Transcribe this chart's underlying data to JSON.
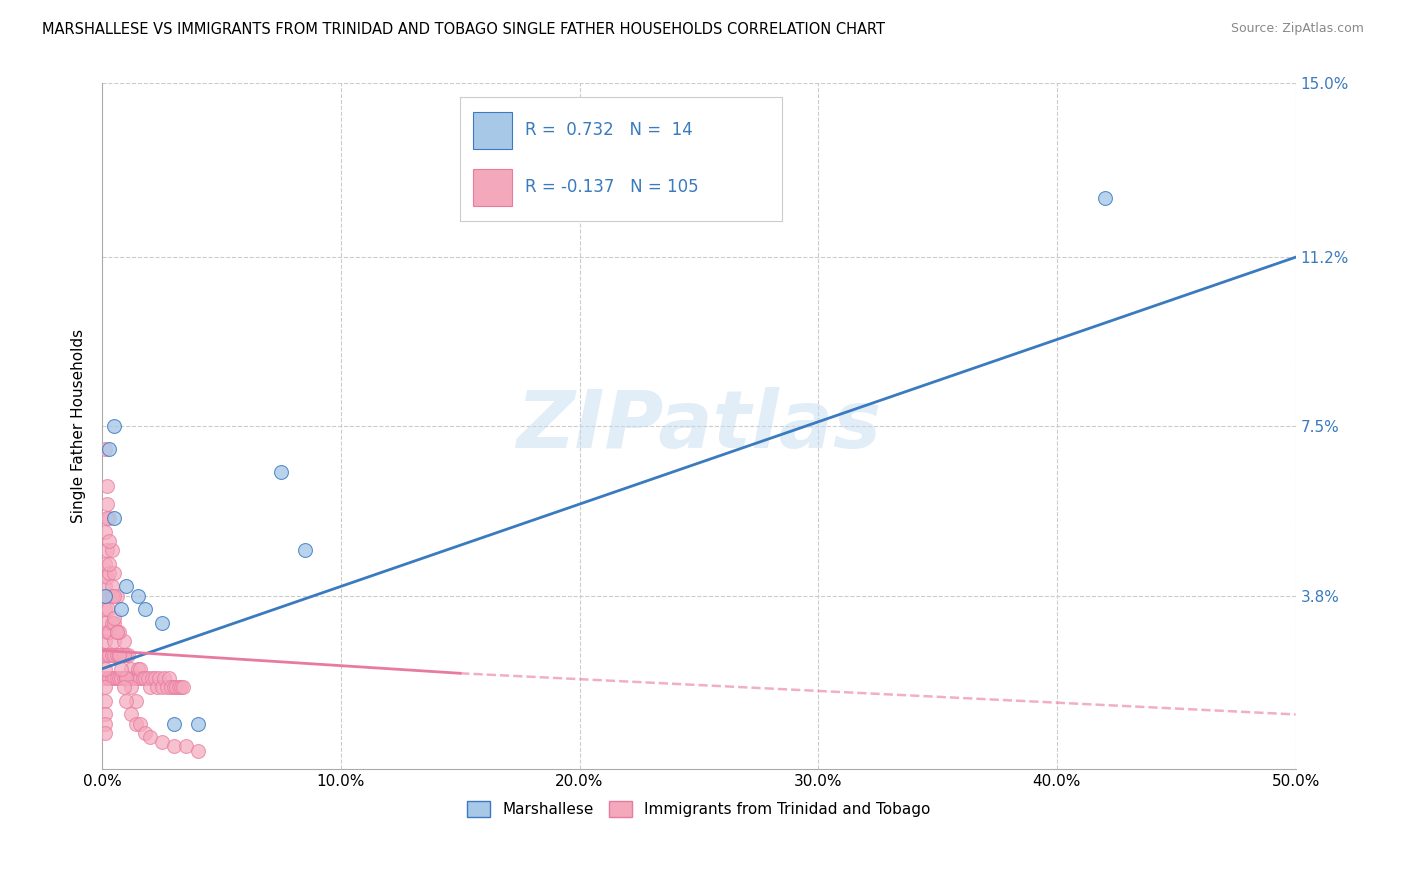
{
  "title": "MARSHALLESE VS IMMIGRANTS FROM TRINIDAD AND TOBAGO SINGLE FATHER HOUSEHOLDS CORRELATION CHART",
  "source": "Source: ZipAtlas.com",
  "ylabel": "Single Father Households",
  "legend_label_blue": "Marshallese",
  "legend_label_pink": "Immigrants from Trinidad and Tobago",
  "R_blue": 0.732,
  "N_blue": 14,
  "R_pink": -0.137,
  "N_pink": 105,
  "xlim": [
    0.0,
    0.5
  ],
  "ylim": [
    0.0,
    0.15
  ],
  "yticks": [
    0.0,
    0.038,
    0.075,
    0.112,
    0.15
  ],
  "ytick_labels": [
    "",
    "3.8%",
    "7.5%",
    "11.2%",
    "15.0%"
  ],
  "xticks": [
    0.0,
    0.1,
    0.2,
    0.3,
    0.4,
    0.5
  ],
  "xtick_labels": [
    "0.0%",
    "10.0%",
    "20.0%",
    "30.0%",
    "40.0%",
    "50.0%"
  ],
  "watermark": "ZIPatlas",
  "color_blue": "#a8c8e8",
  "color_pink": "#f4a8bc",
  "color_blue_line": "#3a7abf",
  "color_pink_line": "#e87aa0",
  "blue_scatter_x": [
    0.001,
    0.003,
    0.005,
    0.008,
    0.01,
    0.015,
    0.018,
    0.025,
    0.03,
    0.04,
    0.42,
    0.005,
    0.085,
    0.075
  ],
  "blue_scatter_y": [
    0.038,
    0.07,
    0.055,
    0.035,
    0.04,
    0.038,
    0.035,
    0.032,
    0.01,
    0.01,
    0.125,
    0.075,
    0.048,
    0.065
  ],
  "pink_scatter_x": [
    0.0005,
    0.0008,
    0.001,
    0.001,
    0.001,
    0.0015,
    0.002,
    0.002,
    0.002,
    0.0025,
    0.003,
    0.003,
    0.003,
    0.003,
    0.004,
    0.004,
    0.004,
    0.005,
    0.005,
    0.005,
    0.005,
    0.006,
    0.006,
    0.006,
    0.007,
    0.007,
    0.008,
    0.008,
    0.009,
    0.009,
    0.01,
    0.01,
    0.011,
    0.011,
    0.012,
    0.012,
    0.013,
    0.014,
    0.015,
    0.015,
    0.016,
    0.016,
    0.017,
    0.018,
    0.019,
    0.02,
    0.021,
    0.022,
    0.023,
    0.024,
    0.025,
    0.026,
    0.027,
    0.028,
    0.029,
    0.03,
    0.031,
    0.032,
    0.033,
    0.034,
    0.001,
    0.001,
    0.001,
    0.001,
    0.002,
    0.002,
    0.002,
    0.003,
    0.003,
    0.004,
    0.005,
    0.006,
    0.007,
    0.009,
    0.01,
    0.012,
    0.014,
    0.002,
    0.002,
    0.003,
    0.003,
    0.004,
    0.004,
    0.005,
    0.005,
    0.006,
    0.007,
    0.008,
    0.009,
    0.01,
    0.012,
    0.014,
    0.016,
    0.018,
    0.02,
    0.025,
    0.03,
    0.035,
    0.04,
    0.001,
    0.001,
    0.001,
    0.001,
    0.001,
    0.001
  ],
  "pink_scatter_y": [
    0.02,
    0.025,
    0.028,
    0.032,
    0.035,
    0.038,
    0.02,
    0.025,
    0.03,
    0.035,
    0.02,
    0.025,
    0.03,
    0.038,
    0.02,
    0.025,
    0.032,
    0.02,
    0.025,
    0.028,
    0.032,
    0.02,
    0.025,
    0.03,
    0.02,
    0.025,
    0.02,
    0.025,
    0.02,
    0.028,
    0.02,
    0.025,
    0.02,
    0.025,
    0.02,
    0.022,
    0.02,
    0.02,
    0.02,
    0.022,
    0.02,
    0.022,
    0.02,
    0.02,
    0.02,
    0.018,
    0.02,
    0.02,
    0.018,
    0.02,
    0.018,
    0.02,
    0.018,
    0.02,
    0.018,
    0.018,
    0.018,
    0.018,
    0.018,
    0.018,
    0.052,
    0.045,
    0.04,
    0.07,
    0.058,
    0.048,
    0.042,
    0.055,
    0.043,
    0.048,
    0.043,
    0.038,
    0.03,
    0.025,
    0.02,
    0.018,
    0.015,
    0.062,
    0.055,
    0.05,
    0.045,
    0.04,
    0.038,
    0.033,
    0.038,
    0.03,
    0.025,
    0.022,
    0.018,
    0.015,
    0.012,
    0.01,
    0.01,
    0.008,
    0.007,
    0.006,
    0.005,
    0.005,
    0.004,
    0.015,
    0.018,
    0.012,
    0.01,
    0.022,
    0.008
  ]
}
